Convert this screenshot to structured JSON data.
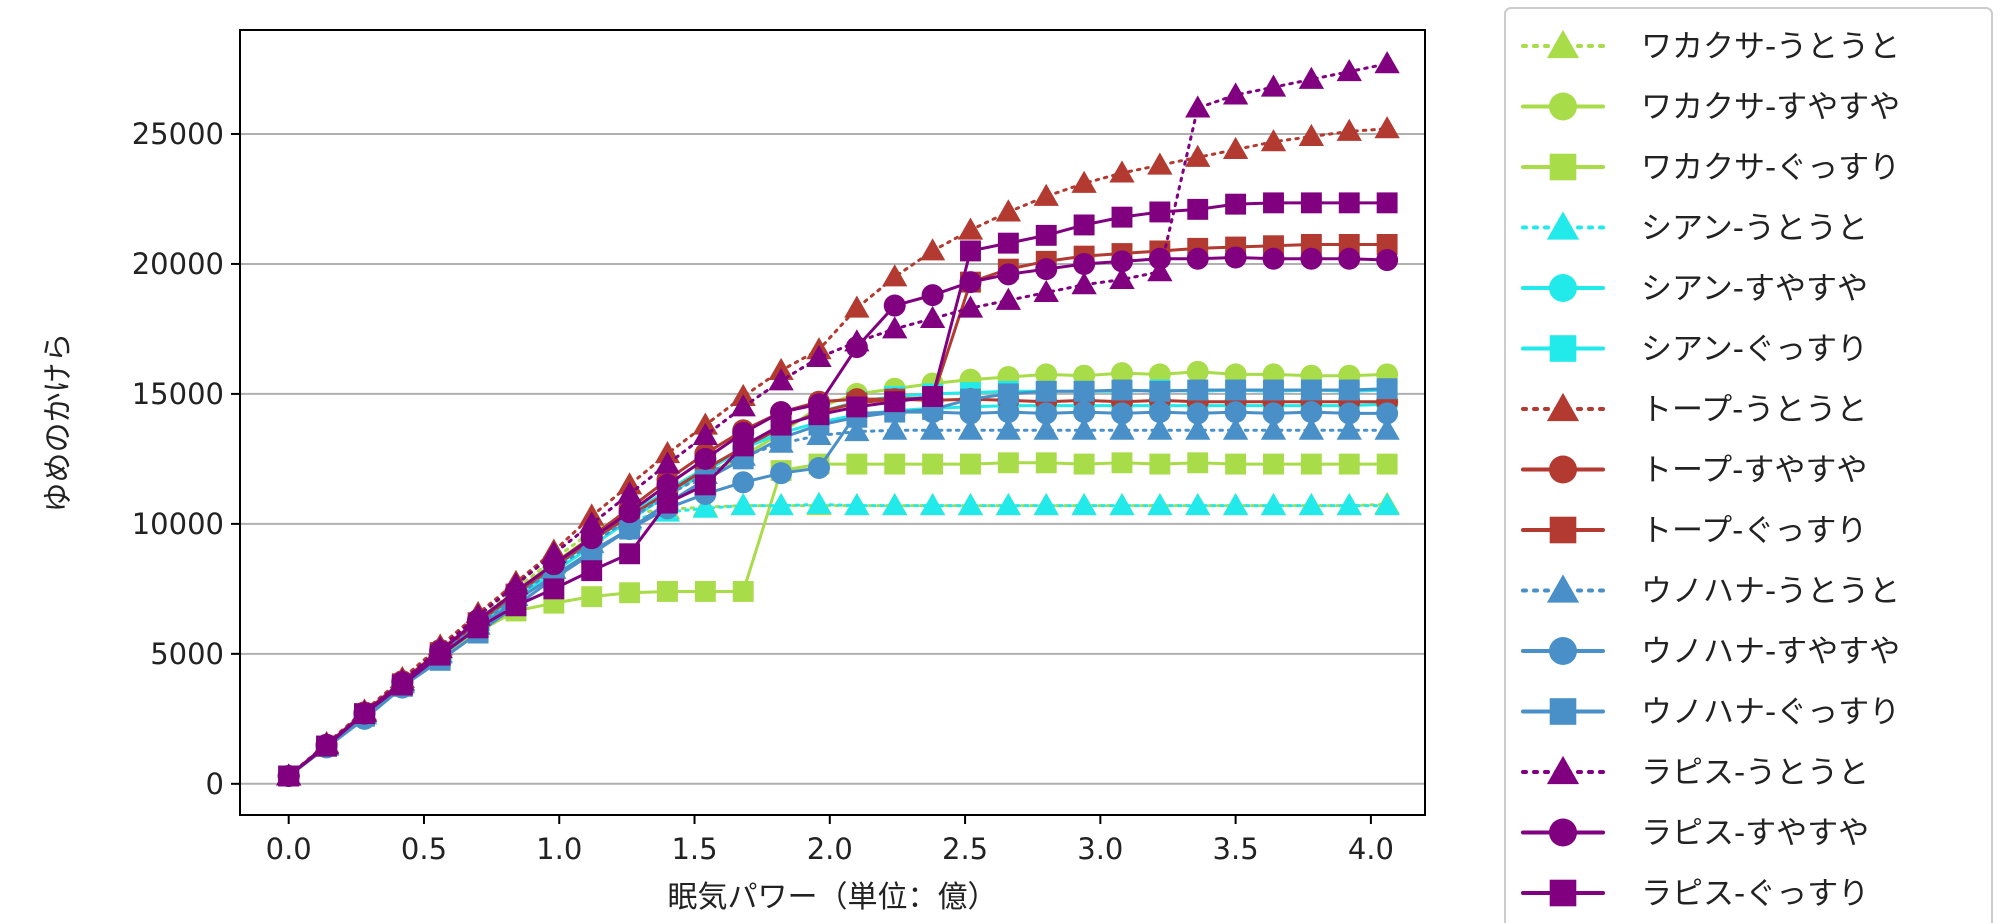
{
  "chart_data": {
    "type": "line",
    "title": "",
    "xlabel": "眠気パワー（単位：億）",
    "ylabel": "ゆめのかけら",
    "xlim": [
      -0.18,
      4.2
    ],
    "ylim": [
      -1200,
      29000
    ],
    "x_ticks": [
      0.0,
      0.5,
      1.0,
      1.5,
      2.0,
      2.5,
      3.0,
      3.5,
      4.0
    ],
    "x_tick_labels": [
      "0.0",
      "0.5",
      "1.0",
      "1.5",
      "2.0",
      "2.5",
      "3.0",
      "3.5",
      "4.0"
    ],
    "y_ticks": [
      0,
      5000,
      10000,
      15000,
      20000,
      25000
    ],
    "y_tick_labels": [
      "0",
      "5000",
      "10000",
      "15000",
      "20000",
      "25000"
    ],
    "grid": "horizontal",
    "legend_position": "outside-right",
    "x": [
      0.0,
      0.14,
      0.28,
      0.42,
      0.56,
      0.7,
      0.84,
      0.98,
      1.12,
      1.26,
      1.4,
      1.54,
      1.68,
      1.82,
      1.96,
      2.1,
      2.24,
      2.38,
      2.52,
      2.66,
      2.8,
      2.94,
      3.08,
      3.22,
      3.36,
      3.5,
      3.64,
      3.78,
      3.92,
      4.06
    ],
    "series": [
      {
        "name": "ワカクサ-うとうと",
        "color": "#a8dc48",
        "linestyle": "dotted",
        "marker": "triangle",
        "values": [
          300,
          1500,
          2750,
          3950,
          5150,
          6350,
          7500,
          8650,
          9700,
          10400,
          10550,
          10650,
          10700,
          10700,
          10700,
          10700,
          10700,
          10700,
          10700,
          10700,
          10700,
          10700,
          10700,
          10700,
          10700,
          10700,
          10700,
          10700,
          10700,
          10750
        ]
      },
      {
        "name": "ワカクサ-すやすや",
        "color": "#a8dc48",
        "linestyle": "solid",
        "marker": "circle",
        "values": [
          300,
          1500,
          2700,
          3900,
          5100,
          6250,
          7400,
          8500,
          9500,
          10400,
          11200,
          11900,
          12600,
          13500,
          14500,
          15000,
          15200,
          15400,
          15550,
          15650,
          15750,
          15700,
          15800,
          15750,
          15850,
          15750,
          15750,
          15700,
          15700,
          15750
        ]
      },
      {
        "name": "ワカクサ-ぐっすり",
        "color": "#a8dc48",
        "linestyle": "solid",
        "marker": "square",
        "values": [
          300,
          1450,
          2650,
          3800,
          4850,
          5850,
          6650,
          6950,
          7200,
          7350,
          7400,
          7400,
          7400,
          12050,
          12300,
          12300,
          12300,
          12300,
          12300,
          12350,
          12350,
          12300,
          12350,
          12300,
          12350,
          12300,
          12300,
          12300,
          12300,
          12300
        ]
      },
      {
        "name": "シアン-うとうと",
        "color": "#22eaea",
        "linestyle": "dotted",
        "marker": "triangle",
        "values": [
          300,
          1450,
          2700,
          3900,
          5050,
          6250,
          7350,
          8450,
          9450,
          10150,
          10450,
          10600,
          10700,
          10700,
          10750,
          10700,
          10700,
          10700,
          10700,
          10700,
          10700,
          10700,
          10700,
          10700,
          10700,
          10700,
          10700,
          10700,
          10700,
          10700
        ]
      },
      {
        "name": "シアン-すやすや",
        "color": "#22eaea",
        "linestyle": "solid",
        "marker": "circle",
        "values": [
          300,
          1450,
          2650,
          3850,
          5000,
          6150,
          7250,
          8300,
          9350,
          10350,
          11300,
          12150,
          12900,
          13500,
          13900,
          14200,
          14350,
          14450,
          14500,
          14550,
          14550,
          14550,
          14550,
          14550,
          14550,
          14550,
          14550,
          14550,
          14550,
          14600
        ]
      },
      {
        "name": "シアン-ぐっすり",
        "color": "#22eaea",
        "linestyle": "solid",
        "marker": "square",
        "values": [
          300,
          1450,
          2650,
          3800,
          4950,
          6050,
          7100,
          8150,
          9150,
          10150,
          11100,
          12000,
          12900,
          13700,
          14300,
          14700,
          14900,
          15000,
          15050,
          15100,
          15100,
          15100,
          15100,
          15150,
          15100,
          15150,
          15100,
          15150,
          15100,
          15150
        ]
      },
      {
        "name": "トープ-うとうと",
        "color": "#b23a30",
        "linestyle": "dotted",
        "marker": "triangle",
        "values": [
          300,
          1550,
          2800,
          4050,
          5300,
          6550,
          7750,
          8950,
          10300,
          11500,
          12700,
          13800,
          14900,
          15900,
          16700,
          18300,
          19500,
          20500,
          21300,
          22000,
          22600,
          23100,
          23500,
          23800,
          24100,
          24400,
          24700,
          24900,
          25100,
          25200
        ]
      },
      {
        "name": "トープ-すやすや",
        "color": "#b23a30",
        "linestyle": "solid",
        "marker": "circle",
        "values": [
          300,
          1500,
          2750,
          3950,
          5150,
          6300,
          7400,
          8450,
          9500,
          10600,
          11700,
          12700,
          13600,
          14300,
          14700,
          14800,
          14800,
          14750,
          14800,
          14750,
          14700,
          14750,
          14700,
          14750,
          14700,
          14700,
          14700,
          14700,
          14700,
          14700
        ]
      },
      {
        "name": "トープ-ぐっすり",
        "color": "#b23a30",
        "linestyle": "solid",
        "marker": "square",
        "values": [
          300,
          1450,
          2650,
          3850,
          5050,
          6200,
          7300,
          8350,
          9350,
          10300,
          11200,
          12100,
          12950,
          13700,
          14300,
          14650,
          14800,
          14850,
          19300,
          19800,
          20100,
          20300,
          20400,
          20500,
          20600,
          20650,
          20700,
          20750,
          20750,
          20750
        ]
      },
      {
        "name": "ウノハナ-うとうと",
        "color": "#4a90c8",
        "linestyle": "dotted",
        "marker": "triangle",
        "values": [
          300,
          1450,
          2650,
          3850,
          5000,
          6100,
          7200,
          8250,
          9250,
          10200,
          11100,
          11900,
          12600,
          13100,
          13400,
          13550,
          13600,
          13600,
          13600,
          13600,
          13600,
          13600,
          13600,
          13600,
          13600,
          13600,
          13600,
          13600,
          13600,
          13600
        ]
      },
      {
        "name": "ウノハナ-すやすや",
        "color": "#4a90c8",
        "linestyle": "solid",
        "marker": "circle",
        "values": [
          300,
          1400,
          2500,
          3700,
          4900,
          6000,
          7050,
          8000,
          8950,
          9800,
          10600,
          11150,
          11600,
          11950,
          12150,
          14250,
          14300,
          14300,
          14250,
          14300,
          14250,
          14300,
          14250,
          14300,
          14250,
          14300,
          14250,
          14300,
          14250,
          14250
        ]
      },
      {
        "name": "ウノハナ-ぐっすり",
        "color": "#4a90c8",
        "linestyle": "solid",
        "marker": "square",
        "values": [
          300,
          1450,
          2600,
          3750,
          4750,
          5800,
          6850,
          7900,
          8850,
          9800,
          10800,
          11700,
          12500,
          13300,
          13800,
          14100,
          14300,
          14400,
          14800,
          15000,
          15100,
          15100,
          15150,
          15100,
          15150,
          15150,
          15150,
          15150,
          15150,
          15200
        ]
      },
      {
        "name": "ラピス-うとうと",
        "color": "#800080",
        "linestyle": "dotted",
        "marker": "triangle",
        "values": [
          300,
          1500,
          2750,
          3950,
          5200,
          6450,
          7650,
          8850,
          10000,
          11150,
          12300,
          13400,
          14500,
          15500,
          16400,
          17000,
          17500,
          17900,
          18300,
          18600,
          18900,
          19200,
          19400,
          19700,
          26000,
          26500,
          26800,
          27100,
          27400,
          27700
        ]
      },
      {
        "name": "ラピス-すやすや",
        "color": "#800080",
        "linestyle": "solid",
        "marker": "circle",
        "values": [
          300,
          1500,
          2700,
          3900,
          5100,
          6300,
          7400,
          8450,
          9450,
          10450,
          11500,
          12500,
          13500,
          14300,
          14600,
          16800,
          18400,
          18800,
          19300,
          19600,
          19800,
          20000,
          20100,
          20200,
          20200,
          20250,
          20200,
          20200,
          20200,
          20150
        ]
      },
      {
        "name": "ラピス-ぐっすり",
        "color": "#800080",
        "linestyle": "solid",
        "marker": "square",
        "values": [
          300,
          1450,
          2700,
          3800,
          4950,
          6000,
          6850,
          7500,
          8200,
          8850,
          10800,
          11500,
          13000,
          13800,
          14200,
          14500,
          14700,
          14900,
          20500,
          20800,
          21100,
          21500,
          21800,
          22000,
          22100,
          22300,
          22350,
          22350,
          22350,
          22350
        ]
      }
    ]
  }
}
